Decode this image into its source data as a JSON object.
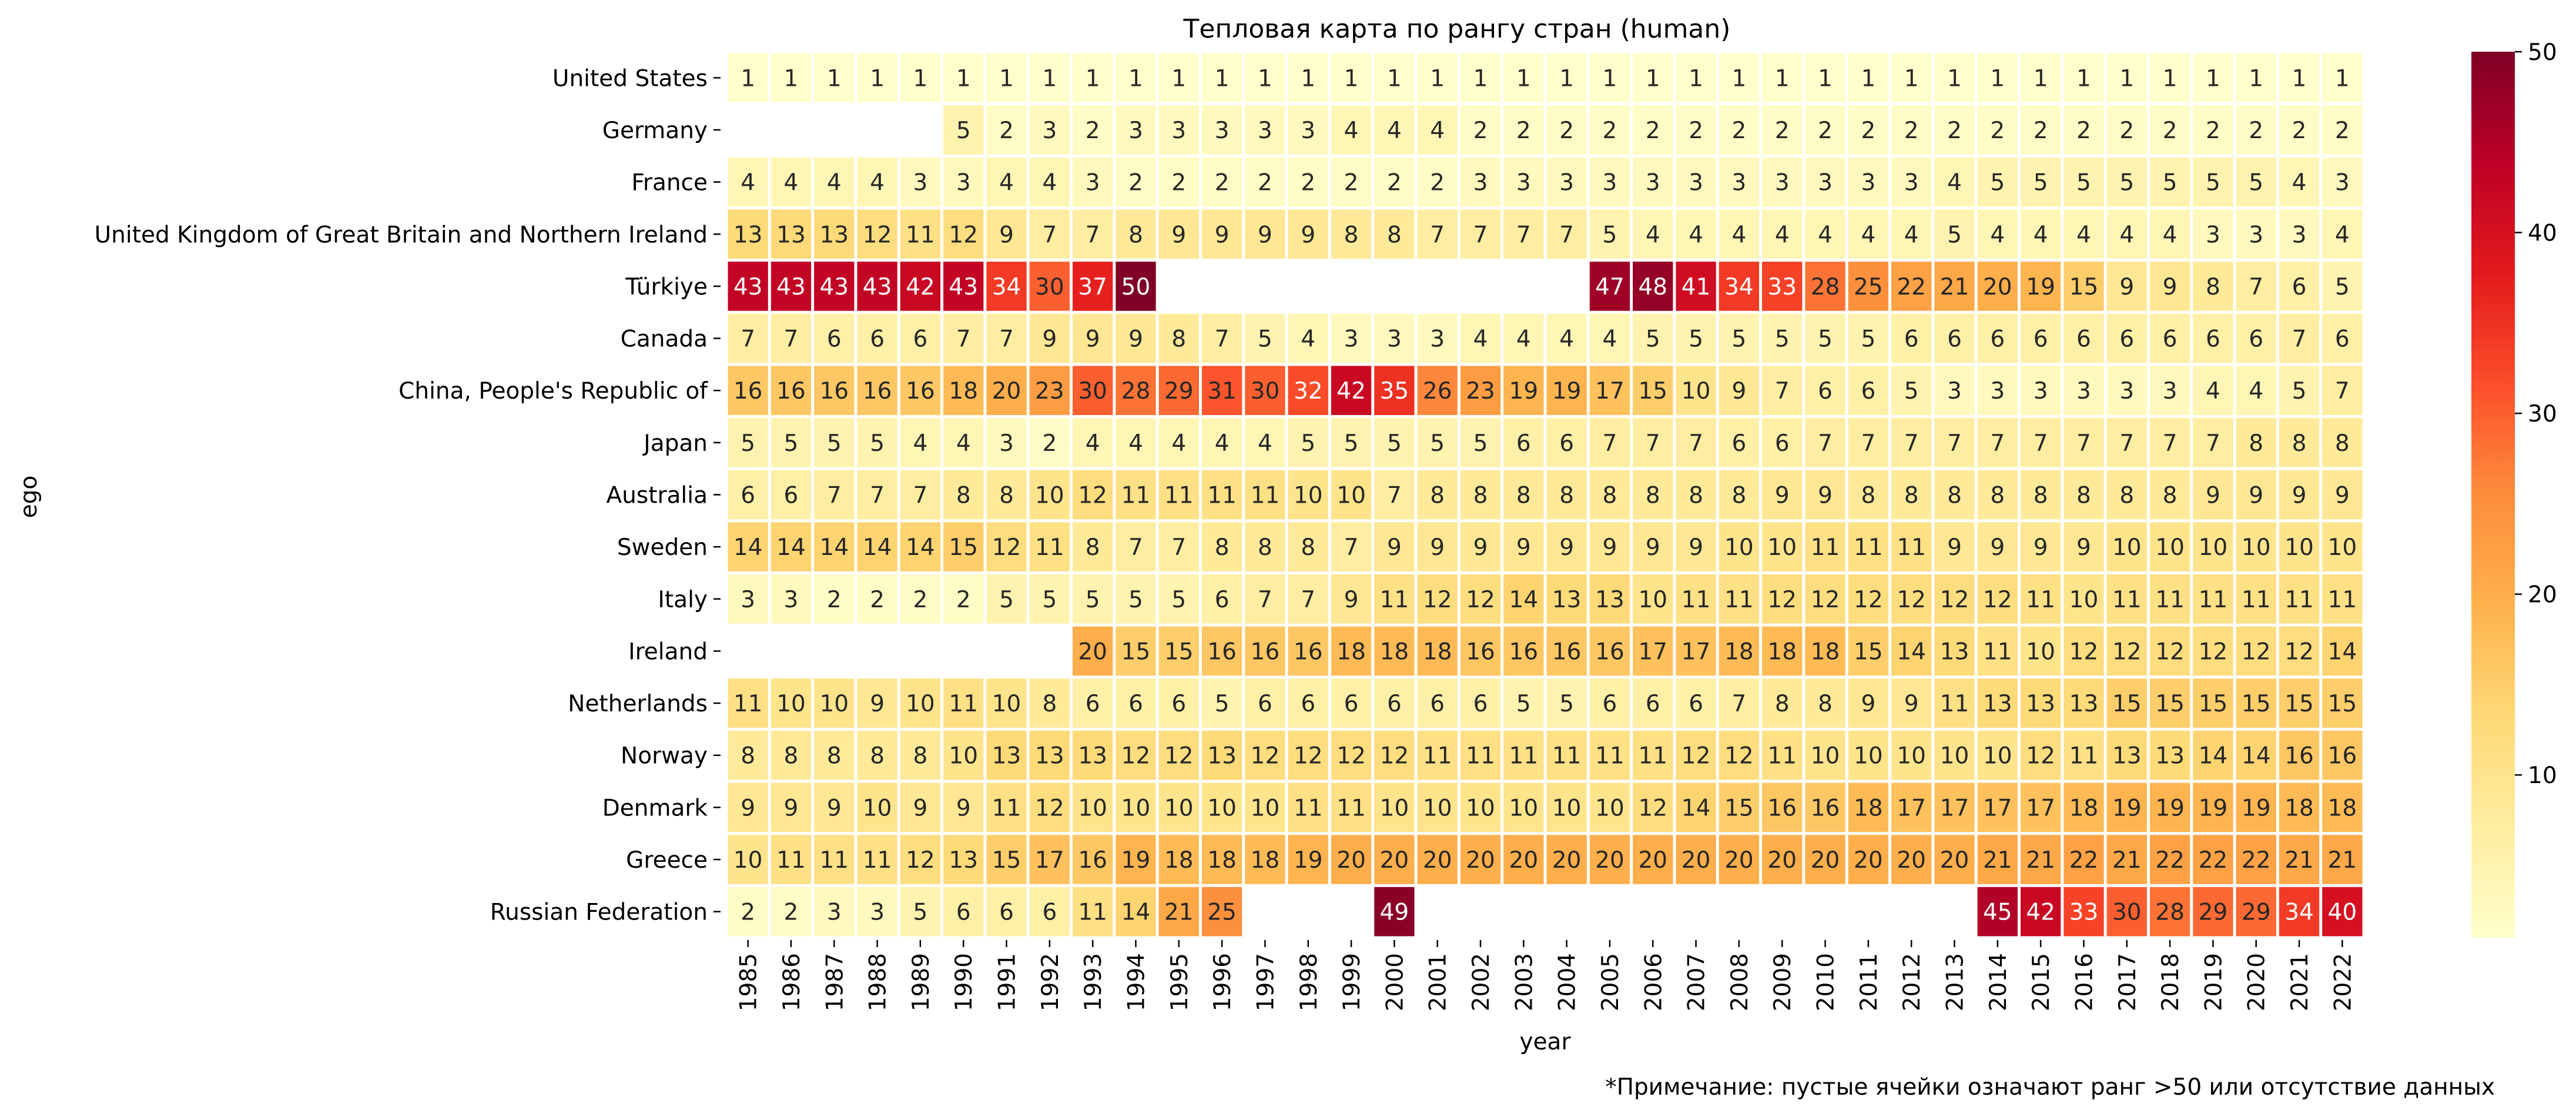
{
  "chart_data": {
    "type": "heatmap",
    "title": "Тепловая карта по рангу стран (human)",
    "xlabel": "year",
    "ylabel": "ego",
    "note": "*Примечание: пустые ячейки означают ранг >50 или отсутствие данных",
    "color_scale": {
      "min": 1,
      "max": 50,
      "ticks": [
        10,
        20,
        30,
        40,
        50
      ],
      "colors": [
        "#ffffcc",
        "#ffeda0",
        "#fed976",
        "#feb24c",
        "#fd8d3c",
        "#fc4e2a",
        "#e31a1c",
        "#bd0026",
        "#800026"
      ]
    },
    "x": [
      "1985",
      "1986",
      "1987",
      "1988",
      "1989",
      "1990",
      "1991",
      "1992",
      "1993",
      "1994",
      "1995",
      "1996",
      "1997",
      "1998",
      "1999",
      "2000",
      "2001",
      "2002",
      "2003",
      "2004",
      "2005",
      "2006",
      "2007",
      "2008",
      "2009",
      "2010",
      "2011",
      "2012",
      "2013",
      "2014",
      "2015",
      "2016",
      "2017",
      "2018",
      "2019",
      "2020",
      "2021",
      "2022"
    ],
    "rows": [
      {
        "name": "United States",
        "values": [
          1,
          1,
          1,
          1,
          1,
          1,
          1,
          1,
          1,
          1,
          1,
          1,
          1,
          1,
          1,
          1,
          1,
          1,
          1,
          1,
          1,
          1,
          1,
          1,
          1,
          1,
          1,
          1,
          1,
          1,
          1,
          1,
          1,
          1,
          1,
          1,
          1,
          1
        ]
      },
      {
        "name": "Germany",
        "values": [
          null,
          null,
          null,
          null,
          null,
          5,
          2,
          3,
          2,
          3,
          3,
          3,
          3,
          3,
          4,
          4,
          4,
          2,
          2,
          2,
          2,
          2,
          2,
          2,
          2,
          2,
          2,
          2,
          2,
          2,
          2,
          2,
          2,
          2,
          2,
          2,
          2,
          2
        ]
      },
      {
        "name": "France",
        "values": [
          4,
          4,
          4,
          4,
          3,
          3,
          4,
          4,
          3,
          2,
          2,
          2,
          2,
          2,
          2,
          2,
          2,
          3,
          3,
          3,
          3,
          3,
          3,
          3,
          3,
          3,
          3,
          3,
          4,
          5,
          5,
          5,
          5,
          5,
          5,
          5,
          4,
          3
        ]
      },
      {
        "name": "United Kingdom of Great Britain and Northern Ireland",
        "values": [
          13,
          13,
          13,
          12,
          11,
          12,
          9,
          7,
          7,
          8,
          9,
          9,
          9,
          9,
          8,
          8,
          7,
          7,
          7,
          7,
          5,
          4,
          4,
          4,
          4,
          4,
          4,
          4,
          5,
          4,
          4,
          4,
          4,
          4,
          3,
          3,
          3,
          4
        ]
      },
      {
        "name": "Türkiye",
        "values": [
          43,
          43,
          43,
          43,
          42,
          43,
          34,
          30,
          37,
          50,
          null,
          null,
          null,
          null,
          null,
          null,
          null,
          null,
          null,
          null,
          47,
          48,
          41,
          34,
          33,
          28,
          25,
          22,
          21,
          20,
          19,
          15,
          9,
          9,
          8,
          7,
          6,
          5
        ]
      },
      {
        "name": "Canada",
        "values": [
          7,
          7,
          6,
          6,
          6,
          7,
          7,
          9,
          9,
          9,
          8,
          7,
          5,
          4,
          3,
          3,
          3,
          4,
          4,
          4,
          4,
          5,
          5,
          5,
          5,
          5,
          5,
          6,
          6,
          6,
          6,
          6,
          6,
          6,
          6,
          6,
          7,
          6
        ]
      },
      {
        "name": "China, People's Republic of",
        "values": [
          16,
          16,
          16,
          16,
          16,
          18,
          20,
          23,
          30,
          28,
          29,
          31,
          30,
          32,
          42,
          35,
          26,
          23,
          19,
          19,
          17,
          15,
          10,
          9,
          7,
          6,
          6,
          5,
          3,
          3,
          3,
          3,
          3,
          3,
          4,
          4,
          5,
          7
        ]
      },
      {
        "name": "Japan",
        "values": [
          5,
          5,
          5,
          5,
          4,
          4,
          3,
          2,
          4,
          4,
          4,
          4,
          4,
          5,
          5,
          5,
          5,
          5,
          6,
          6,
          7,
          7,
          7,
          6,
          6,
          7,
          7,
          7,
          7,
          7,
          7,
          7,
          7,
          7,
          7,
          8,
          8,
          8
        ]
      },
      {
        "name": "Australia",
        "values": [
          6,
          6,
          7,
          7,
          7,
          8,
          8,
          10,
          12,
          11,
          11,
          11,
          11,
          10,
          10,
          7,
          8,
          8,
          8,
          8,
          8,
          8,
          8,
          8,
          9,
          9,
          8,
          8,
          8,
          8,
          8,
          8,
          8,
          8,
          9,
          9,
          9,
          9
        ]
      },
      {
        "name": "Sweden",
        "values": [
          14,
          14,
          14,
          14,
          14,
          15,
          12,
          11,
          8,
          7,
          7,
          8,
          8,
          8,
          7,
          9,
          9,
          9,
          9,
          9,
          9,
          9,
          9,
          10,
          10,
          11,
          11,
          11,
          9,
          9,
          9,
          9,
          10,
          10,
          10,
          10,
          10,
          10
        ]
      },
      {
        "name": "Italy",
        "values": [
          3,
          3,
          2,
          2,
          2,
          2,
          5,
          5,
          5,
          5,
          5,
          6,
          7,
          7,
          9,
          11,
          12,
          12,
          14,
          13,
          13,
          10,
          11,
          11,
          12,
          12,
          12,
          12,
          12,
          12,
          11,
          10,
          11,
          11,
          11,
          11,
          11,
          11
        ]
      },
      {
        "name": "Ireland",
        "values": [
          null,
          null,
          null,
          null,
          null,
          null,
          null,
          null,
          20,
          15,
          15,
          16,
          16,
          16,
          18,
          18,
          18,
          16,
          16,
          16,
          16,
          17,
          17,
          18,
          18,
          18,
          15,
          14,
          13,
          11,
          10,
          12,
          12,
          12,
          12,
          12,
          12,
          14
        ]
      },
      {
        "name": "Netherlands",
        "values": [
          11,
          10,
          10,
          9,
          10,
          11,
          10,
          8,
          6,
          6,
          6,
          5,
          6,
          6,
          6,
          6,
          6,
          6,
          5,
          5,
          6,
          6,
          6,
          7,
          8,
          8,
          9,
          9,
          11,
          13,
          13,
          13,
          15,
          15,
          15,
          15,
          15,
          15
        ]
      },
      {
        "name": "Norway",
        "values": [
          8,
          8,
          8,
          8,
          8,
          10,
          13,
          13,
          13,
          12,
          12,
          13,
          12,
          12,
          12,
          12,
          11,
          11,
          11,
          11,
          11,
          11,
          12,
          12,
          11,
          10,
          10,
          10,
          10,
          10,
          12,
          11,
          13,
          13,
          14,
          14,
          16,
          16
        ]
      },
      {
        "name": "Denmark",
        "values": [
          9,
          9,
          9,
          10,
          9,
          9,
          11,
          12,
          10,
          10,
          10,
          10,
          10,
          11,
          11,
          10,
          10,
          10,
          10,
          10,
          10,
          12,
          14,
          15,
          16,
          16,
          18,
          17,
          17,
          17,
          17,
          18,
          19,
          19,
          19,
          19,
          18,
          18
        ]
      },
      {
        "name": "Greece",
        "values": [
          10,
          11,
          11,
          11,
          12,
          13,
          15,
          17,
          16,
          19,
          18,
          18,
          18,
          19,
          20,
          20,
          20,
          20,
          20,
          20,
          20,
          20,
          20,
          20,
          20,
          20,
          20,
          20,
          20,
          21,
          21,
          22,
          21,
          22,
          22,
          22,
          21,
          21
        ]
      },
      {
        "name": "Russian Federation",
        "values": [
          2,
          2,
          3,
          3,
          5,
          6,
          6,
          6,
          11,
          14,
          21,
          25,
          null,
          null,
          null,
          49,
          null,
          null,
          null,
          null,
          null,
          null,
          null,
          null,
          null,
          null,
          null,
          null,
          null,
          45,
          42,
          33,
          30,
          28,
          29,
          29,
          34,
          40
        ]
      }
    ]
  }
}
